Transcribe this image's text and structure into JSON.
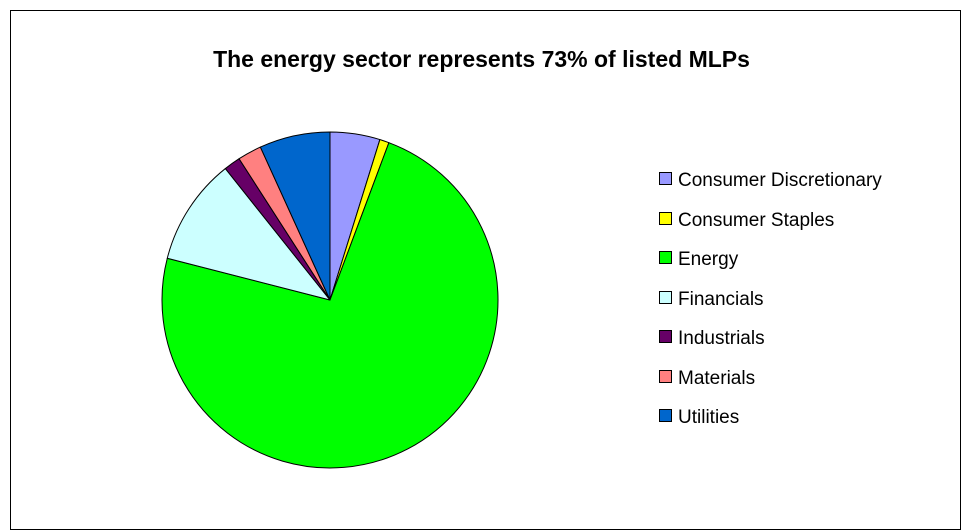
{
  "chart_data": {
    "type": "pie",
    "title": "The energy sector represents 73% of listed MLPs",
    "categories": [
      "Consumer Discretionary",
      "Consumer Staples",
      "Energy",
      "Financials",
      "Industrials",
      "Materials",
      "Utilities"
    ],
    "values": [
      4.8,
      0.9,
      73.3,
      10.3,
      1.6,
      2.3,
      6.8
    ],
    "colors": [
      "#9999FF",
      "#FFFF00",
      "#00FF00",
      "#CCFFFF",
      "#660066",
      "#FF8080",
      "#0066CC"
    ],
    "legend": "right"
  }
}
